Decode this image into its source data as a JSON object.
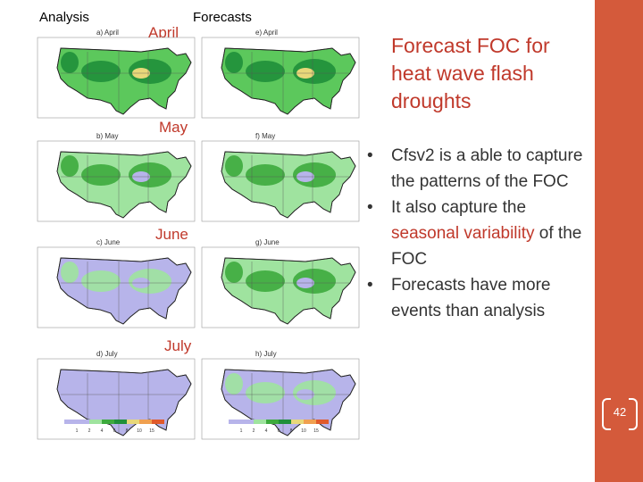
{
  "headers": {
    "analysis": "Analysis",
    "forecasts": "Forecasts"
  },
  "months": [
    "April",
    "May",
    "June",
    "July"
  ],
  "panels": [
    {
      "left": "a) April",
      "right": "e) April",
      "fillL": "#5cc85c",
      "fillR": "#5cc85c",
      "blobL": "#1f8f3a",
      "blobR": "#1f8f3a",
      "extraL": "#e8d87a",
      "extraR": "#e8d87a"
    },
    {
      "left": "b) May",
      "right": "f) May",
      "fillL": "#9fe39f",
      "fillR": "#9fe39f",
      "blobL": "#3daa3d",
      "blobR": "#3daa3d",
      "extraL": "#b7b4ea",
      "extraR": "#b7b4ea"
    },
    {
      "left": "c) June",
      "right": "g) June",
      "fillL": "#b7b4ea",
      "fillR": "#9fe39f",
      "blobL": "#9fe39f",
      "blobR": "#3daa3d",
      "extraL": "#b7b4ea",
      "extraR": "#b7b4ea"
    },
    {
      "left": "d) July",
      "right": "h) July",
      "fillL": "#b7b4ea",
      "fillR": "#b7b4ea",
      "blobL": "#b7b4ea",
      "blobR": "#9fe39f",
      "extraL": "#b7b4ea",
      "extraR": "#b7b4ea"
    }
  ],
  "scale": {
    "colors": [
      "#b7b4ea",
      "#b7b4ea",
      "#9fe39f",
      "#3daa3d",
      "#1f8f3a",
      "#e8d87a",
      "#f0a050",
      "#e05a2b"
    ],
    "ticks": [
      "1",
      "2",
      "4",
      "6",
      "8",
      "10",
      "15"
    ]
  },
  "title": "Forecast FOC for heat wave flash droughts",
  "bullets": [
    {
      "parts": [
        {
          "text": "Cfsv2 is a able to capture the patterns of the FOC",
          "hl": false
        }
      ]
    },
    {
      "parts": [
        {
          "text": "It also capture the ",
          "hl": false
        },
        {
          "text": "seasonal variability",
          "hl": true
        },
        {
          "text": " of the FOC",
          "hl": false
        }
      ]
    },
    {
      "parts": [
        {
          "text": "Forecasts have more events than analysis",
          "hl": false
        }
      ]
    }
  ],
  "page_number": "42"
}
